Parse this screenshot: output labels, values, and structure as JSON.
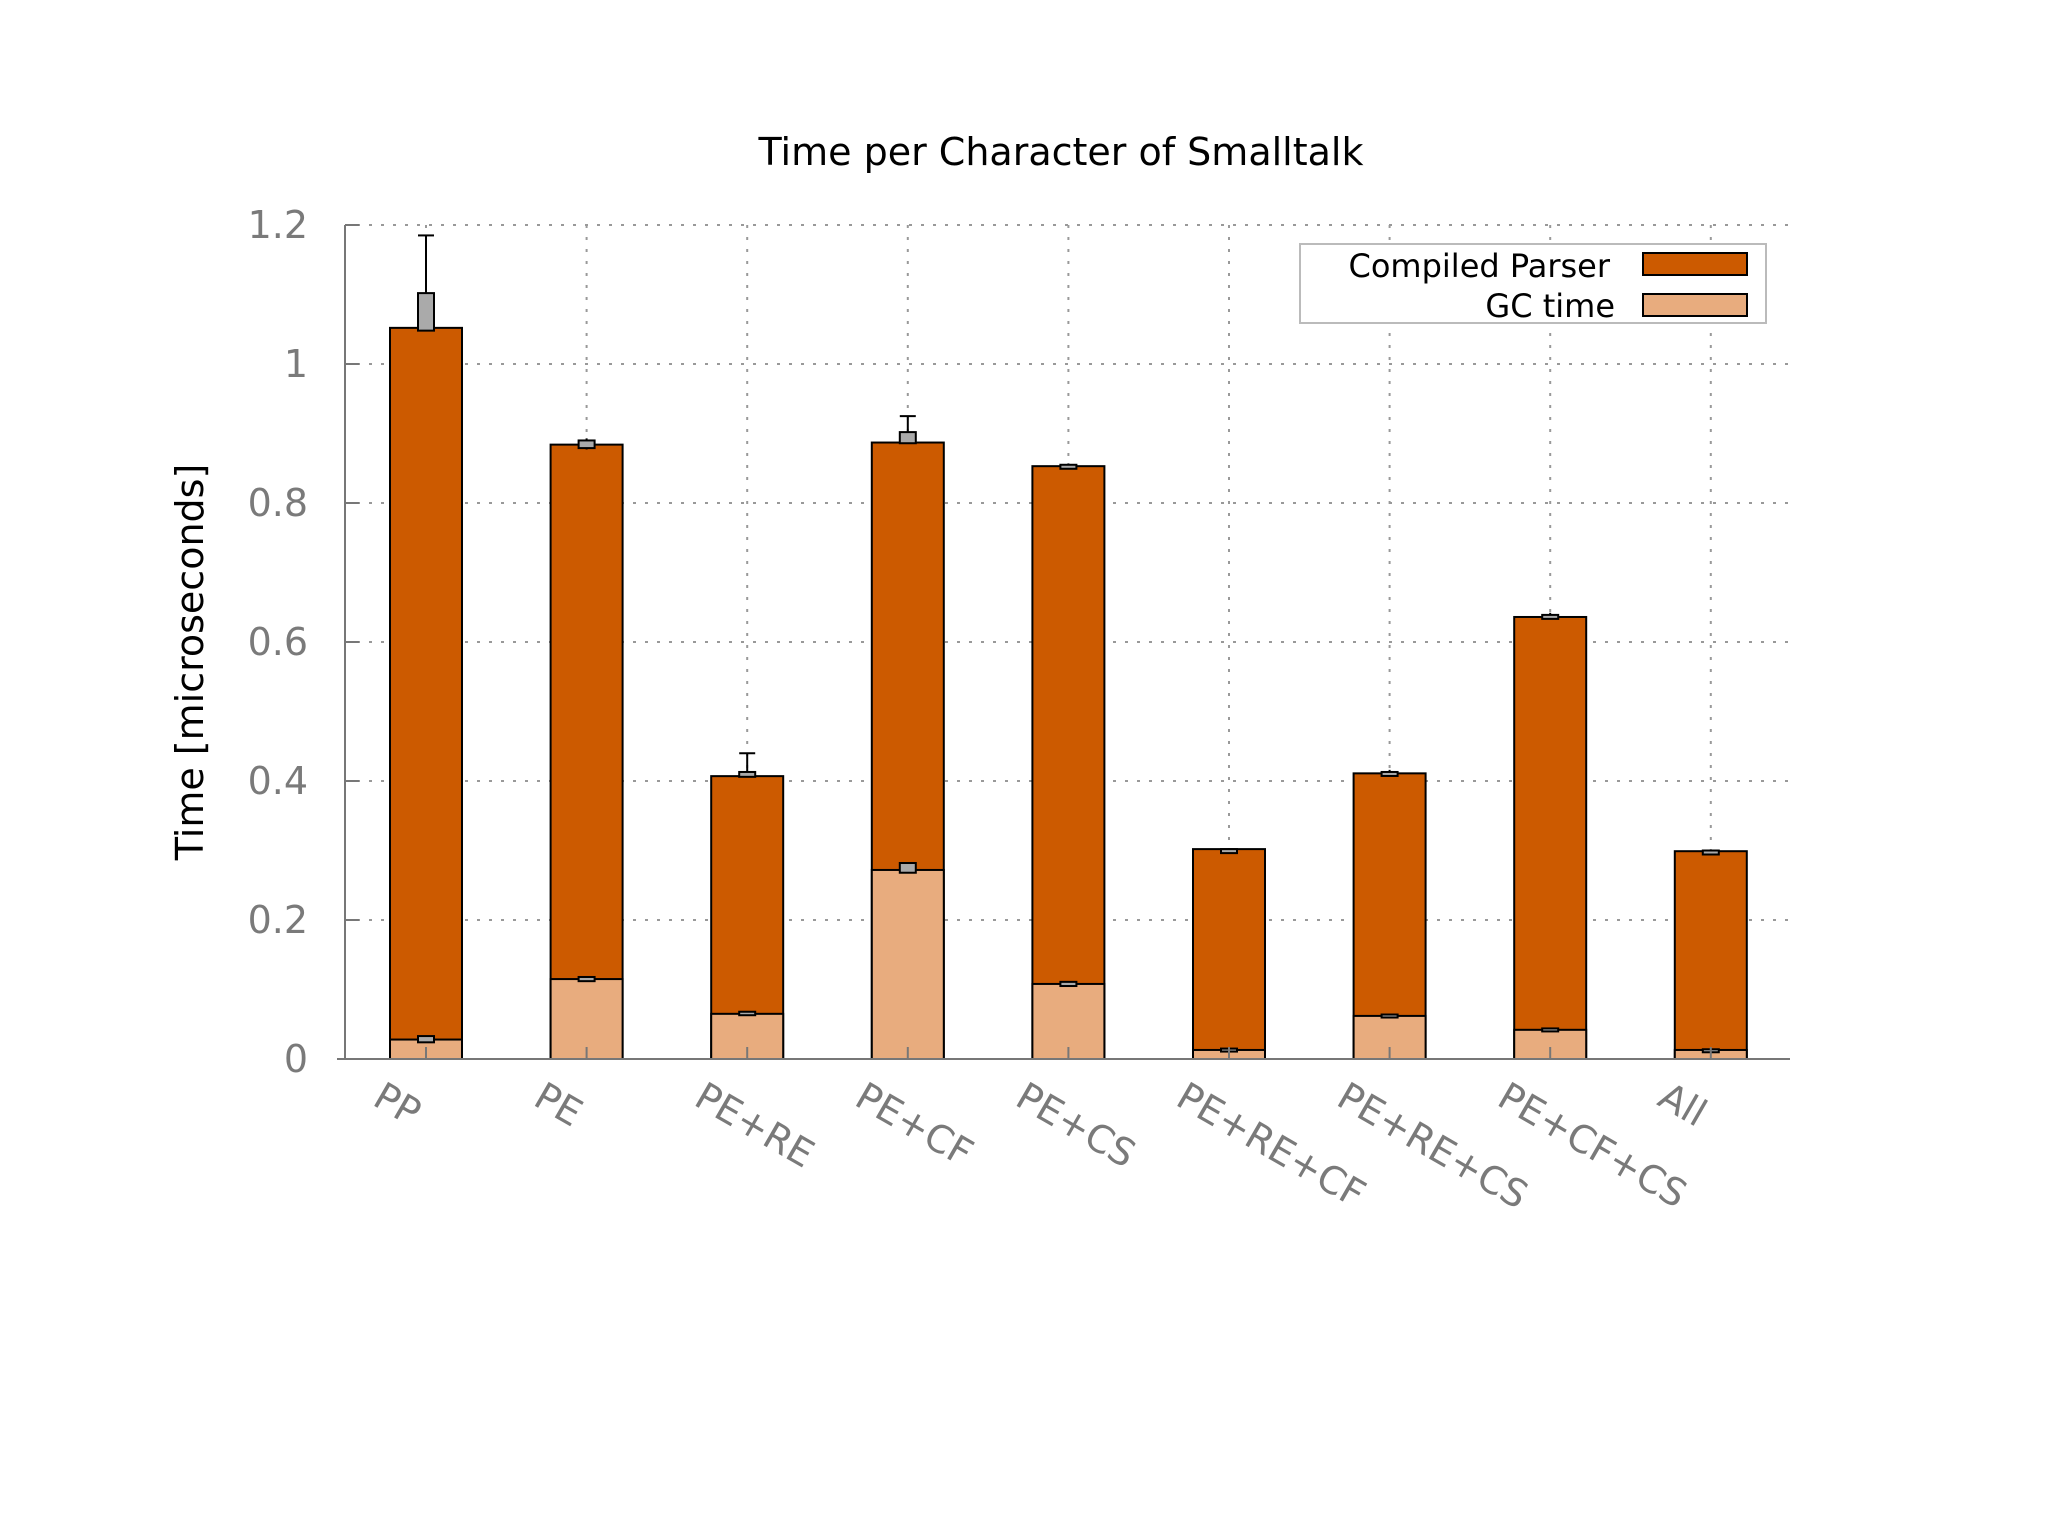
{
  "chart_data": {
    "type": "bar",
    "stacked": true,
    "title": "Time per Character of Smalltalk",
    "xlabel": "",
    "ylabel": "Time [microseconds]",
    "ylim": [
      0,
      1.2
    ],
    "yticks": [
      0,
      0.2,
      0.4,
      0.6,
      0.8,
      1,
      1.2
    ],
    "ytick_labels": [
      "0",
      "0.2",
      "0.4",
      "0.6",
      "0.8",
      "1",
      "1.2"
    ],
    "grid": true,
    "legend_position": "top-right",
    "categories": [
      "PP",
      "PE",
      "PE+RE",
      "PE+CF",
      "PE+CS",
      "PE+RE+CF",
      "PE+RE+CS",
      "PE+CF+CS",
      "All"
    ],
    "series": [
      {
        "name": "GC time",
        "color": "#e8ac7e",
        "values": [
          0.028,
          0.115,
          0.065,
          0.272,
          0.108,
          0.013,
          0.062,
          0.042,
          0.013
        ],
        "error_low": [
          0.024,
          0.112,
          0.063,
          0.268,
          0.105,
          0.012,
          0.06,
          0.041,
          0.012
        ],
        "error_high": [
          0.033,
          0.118,
          0.068,
          0.282,
          0.111,
          0.015,
          0.064,
          0.044,
          0.014
        ]
      },
      {
        "name": "Compiled Parser",
        "color": "#cc5a00",
        "values": [
          1.052,
          0.884,
          0.407,
          0.887,
          0.853,
          0.302,
          0.411,
          0.636,
          0.299
        ],
        "error_low": [
          1.048,
          0.877,
          0.406,
          0.886,
          0.851,
          0.301,
          0.407,
          0.633,
          0.297
        ],
        "error_high": [
          1.185,
          0.893,
          0.44,
          0.925,
          0.857,
          0.303,
          0.416,
          0.642,
          0.301
        ],
        "box_low": [
          1.048,
          0.879,
          0.406,
          0.886,
          0.852,
          0.301,
          0.409,
          0.635,
          0.298
        ],
        "box_high": [
          1.102,
          0.89,
          0.413,
          0.902,
          0.855,
          0.302,
          0.413,
          0.639,
          0.3
        ]
      }
    ]
  }
}
